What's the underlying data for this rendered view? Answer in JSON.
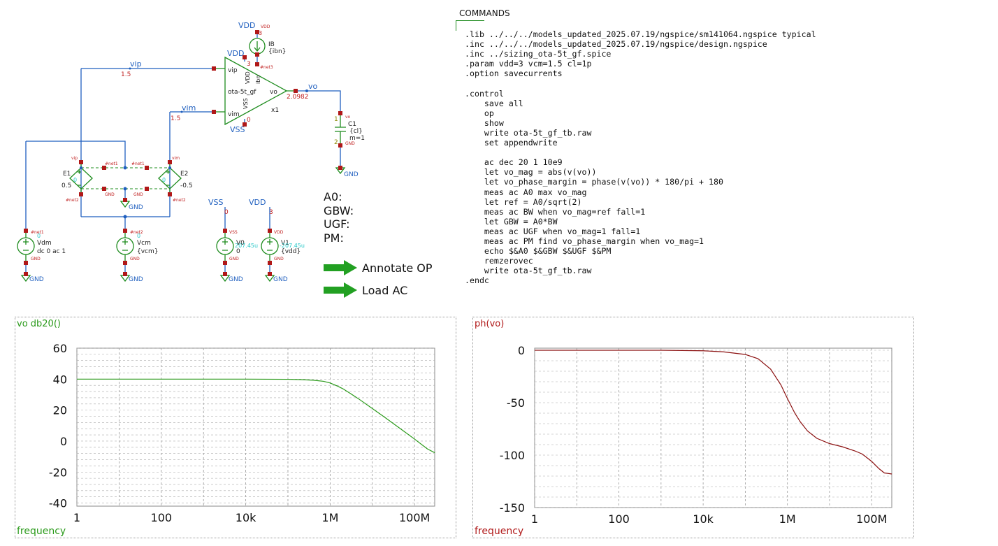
{
  "schematic": {
    "opamp": {
      "name": "ota-5t_gf",
      "instance": "x1",
      "pins": {
        "vip": "vip",
        "vim": "vim",
        "vo": "vo",
        "vdd": "VDD",
        "vss": "VSS",
        "ibn": "ibn"
      }
    },
    "net_labels": {
      "vip": "vip",
      "vim": "vim",
      "vo": "vo",
      "vdd_top": "VDD",
      "vdd_opamp": "VDD",
      "vss_opamp": "VSS",
      "vss_src": "VSS",
      "vdd_src": "VDD"
    },
    "values": {
      "vip": "1.5",
      "vim": "1.5",
      "vo": "2.0982",
      "vdd_pin": "3",
      "vss_pin": "0",
      "ib_top": "3",
      "vss_src": "0",
      "vdd_src": "3"
    },
    "ib": {
      "name": "IB",
      "value": "{ibn}",
      "pin": "VDD",
      "net": "#net3"
    },
    "c1": {
      "name": "C1",
      "value": "{cl}",
      "m": "m=1",
      "pin1": "1",
      "pin2": "2",
      "top": "vo",
      "bot": "GND"
    },
    "e1": {
      "name": "E1",
      "gain": "0.5",
      "tl": "vip",
      "tr": "#net1",
      "bl": "#net2",
      "br": "GND",
      "mid": "0"
    },
    "e2": {
      "name": "E2",
      "gain": "-0.5",
      "tl": "#net1",
      "tr": "vim",
      "bl": "GND",
      "br": "#net2",
      "mid": "0"
    },
    "vdm": {
      "name": "Vdm",
      "value": "dc 0 ac 1",
      "net": "#net1",
      "cur": "0"
    },
    "vcm": {
      "name": "Vcm",
      "value": "{vcm}",
      "net": "#net2",
      "cur": "0"
    },
    "v0": {
      "name": "V0",
      "value": "0",
      "cur": "207.45u",
      "net": "VSS"
    },
    "v1": {
      "name": "V1",
      "value": "{vdd}",
      "cur": "-207.45u",
      "net": "VDD"
    },
    "gnd": "GND"
  },
  "commands": {
    "title": "COMMANDS",
    "text": ".lib ../../../models_updated_2025.07.19/ngspice/sm141064.ngspice typical\n.inc ../../../models_updated_2025.07.19/ngspice/design.ngspice\n.inc ../sizing_ota-5t_gf.spice\n.param vdd=3 vcm=1.5 cl=1p\n.option savecurrents\n\n.control\n    save all\n    op\n    show\n    write ota-5t_gf_tb.raw\n    set appendwrite\n\n    ac dec 20 1 10e9\n    let vo_mag = abs(v(vo))\n    let vo_phase_margin = phase(v(vo)) * 180/pi + 180\n    meas ac A0 max vo_mag\n    let ref = A0/sqrt(2)\n    meas ac BW when vo_mag=ref fall=1\n    let GBW = A0*BW\n    meas ac UGF when vo_mag=1 fall=1\n    meas ac PM find vo_phase_margin when vo_mag=1\n    echo $&A0 $&GBW $&UGF $&PM\n    remzerovec\n    write ota-5t_gf_tb.raw\n.endc"
  },
  "measurements": {
    "a0": "A0:",
    "gbw": "GBW:",
    "ugf": "UGF:",
    "pm": "PM:"
  },
  "buttons": {
    "annotate": "Annotate OP",
    "load": "Load AC"
  },
  "colors": {
    "wire": "#1f5fbf",
    "device": "#1e8c1e",
    "pin": "#b01818",
    "mag_trace": "#2a9a1a",
    "phase_trace": "#8b1010"
  },
  "chart_data": [
    {
      "type": "line",
      "title": "vo db20()",
      "xlabel": "frequency",
      "xscale": "log",
      "xlim": [
        1,
        300000000
      ],
      "ylim": [
        -42,
        60
      ],
      "xticks": [
        {
          "v": 1,
          "label": "1"
        },
        {
          "v": 100,
          "label": "100"
        },
        {
          "v": 10000,
          "label": "10k"
        },
        {
          "v": 1000000,
          "label": "1M"
        },
        {
          "v": 100000000,
          "label": "100M"
        }
      ],
      "yticks": [
        {
          "v": 60,
          "label": "60"
        },
        {
          "v": 40,
          "label": "40"
        },
        {
          "v": 20,
          "label": "20"
        },
        {
          "v": 0,
          "label": "0"
        },
        {
          "v": -20,
          "label": "-20"
        },
        {
          "v": -40,
          "label": "-40"
        }
      ],
      "grid": true,
      "series": [
        {
          "x": [
            1,
            10,
            100,
            1000,
            10000,
            100000,
            200000,
            400000,
            700000,
            1000000,
            1500000,
            2000000,
            3000000,
            5000000,
            10000000,
            20000000,
            50000000,
            100000000,
            200000000,
            300000000
          ],
          "y": [
            40,
            40,
            40,
            40,
            40,
            39.9,
            39.7,
            39.3,
            38.6,
            37.5,
            35.5,
            33.8,
            30.8,
            26.8,
            21,
            15.2,
            7.3,
            1.3,
            -5,
            -7.5
          ]
        }
      ]
    },
    {
      "type": "line",
      "title": "ph(vo)",
      "xlabel": "frequency",
      "xscale": "log",
      "xlim": [
        1,
        300000000
      ],
      "ylim": [
        -150,
        2
      ],
      "xticks": [
        {
          "v": 1,
          "label": "1"
        },
        {
          "v": 100,
          "label": "100"
        },
        {
          "v": 10000,
          "label": "10k"
        },
        {
          "v": 1000000,
          "label": "1M"
        },
        {
          "v": 100000000,
          "label": "100M"
        }
      ],
      "yticks": [
        {
          "v": 0,
          "label": "0"
        },
        {
          "v": -50,
          "label": "-50"
        },
        {
          "v": -100,
          "label": "-100"
        },
        {
          "v": -150,
          "label": "-150"
        }
      ],
      "grid": true,
      "series": [
        {
          "x": [
            1,
            100,
            1000,
            10000,
            30000,
            100000,
            200000,
            400000,
            700000,
            1000000,
            1500000,
            2000000,
            3000000,
            5000000,
            10000000,
            20000000,
            40000000,
            60000000,
            100000000,
            150000000,
            200000000,
            300000000
          ],
          "y": [
            0,
            0,
            0,
            -0.5,
            -1.5,
            -4,
            -8,
            -18,
            -33,
            -46,
            -60,
            -68,
            -77,
            -84,
            -89,
            -92,
            -96,
            -99,
            -106,
            -113,
            -117,
            -118
          ]
        }
      ]
    }
  ]
}
